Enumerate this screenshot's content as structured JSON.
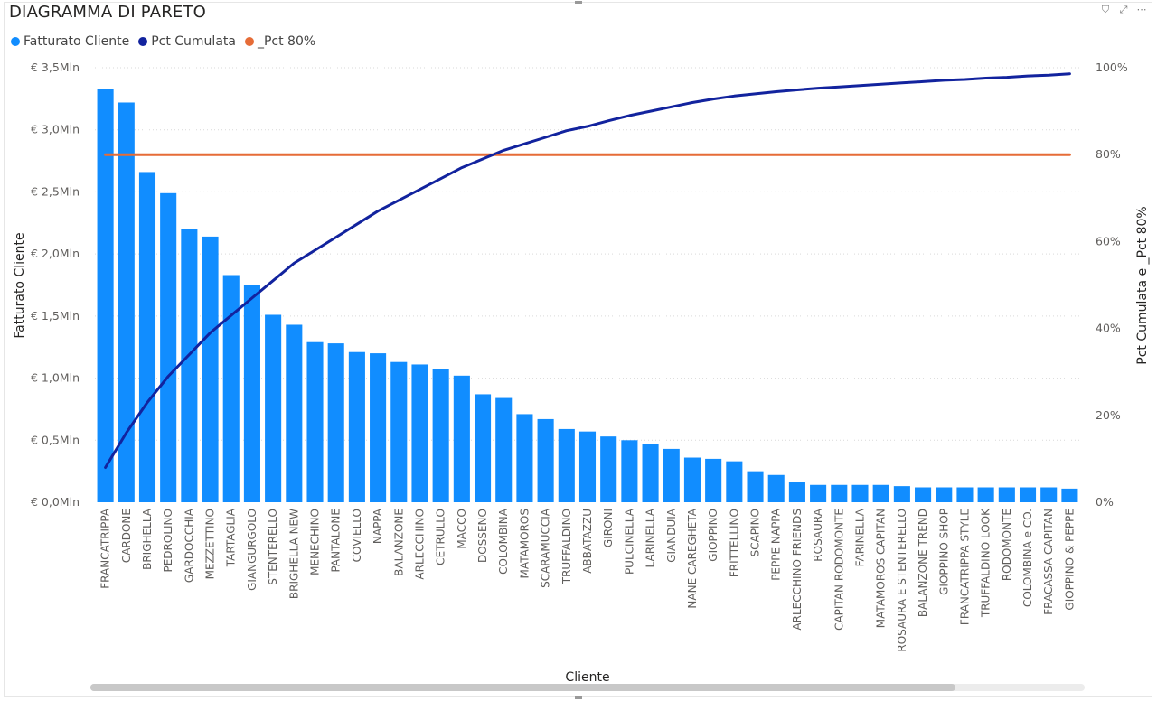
{
  "title": "DIAGRAMMA DI PARETO",
  "header_icons": [
    "filter-icon",
    "focus-mode-icon",
    "more-options-icon"
  ],
  "header_icon_glyphs": [
    "⛉",
    "⤢",
    "⋯"
  ],
  "legend": [
    {
      "label": "Fatturato Cliente",
      "color": "#118dff"
    },
    {
      "label": "Pct Cumulata",
      "color": "#12239e"
    },
    {
      "label": "_Pct 80%",
      "color": "#e66c37"
    }
  ],
  "chart_data": {
    "type": "bar",
    "title": "DIAGRAMMA DI PARETO",
    "xlabel": "Cliente",
    "ylabel": "Fatturato Cliente",
    "y2label": "Pct Cumulata e _Pct 80%",
    "ylim": [
      0,
      3.5
    ],
    "y2lim": [
      0,
      100
    ],
    "y_ticks": [
      "€ 0,0Mln",
      "€ 0,5Mln",
      "€ 1,0Mln",
      "€ 1,5Mln",
      "€ 2,0Mln",
      "€ 2,5Mln",
      "€ 3,0Mln",
      "€ 3,5Mln"
    ],
    "y2_ticks": [
      "0%",
      "20%",
      "40%",
      "60%",
      "80%",
      "100%"
    ],
    "grid": true,
    "legend_position": "top-left",
    "categories": [
      "FRANCATRIPPA",
      "CARDONE",
      "BRIGHELLA",
      "PEDROLINO",
      "GARDOCCHIA",
      "MEZZETTINO",
      "TARTAGLIA",
      "GIANGURGOLO",
      "STENTERELLO",
      "BRIGHELLA NEW",
      "MENECHINO",
      "PANTALONE",
      "COVIELLO",
      "NAPPA",
      "BALANZONE",
      "ARLECCHINO",
      "CETRULLO",
      "MACCO",
      "DOSSENO",
      "COLOMBINA",
      "MATAMOROS",
      "SCARAMUCCIA",
      "TRUFFALDINO",
      "ABBATAZZU",
      "GIRONI",
      "PULCINELLA",
      "LARINELLA",
      "GIANDUIA",
      "NANE CAREGHETA",
      "GIOPPINO",
      "FRITTELLINO",
      "SCAPINO",
      "PEPPE NAPPA",
      "ARLECCHINO FRIENDS",
      "ROSAURA",
      "CAPITAN RODOMONTE",
      "FARINELLA",
      "MATAMOROS CAPITAN",
      "ROSAURA E STENTERELLO",
      "BALANZONE TREND",
      "GIOPPINO SHOP",
      "FRANCATRIPPA STYLE",
      "TRUFFALDINO LOOK",
      "RODOMONTE",
      "COLOMBINA e CO.",
      "FRACASSA CAPITAN",
      "GIOPPINO & PEPPE"
    ],
    "series": [
      {
        "name": "Fatturato Cliente",
        "axis": "left",
        "type": "bar",
        "color": "#118dff",
        "values": [
          3.33,
          3.22,
          2.66,
          2.49,
          2.2,
          2.14,
          1.83,
          1.75,
          1.51,
          1.43,
          1.29,
          1.28,
          1.21,
          1.2,
          1.13,
          1.11,
          1.07,
          1.02,
          0.87,
          0.84,
          0.71,
          0.67,
          0.59,
          0.57,
          0.53,
          0.5,
          0.47,
          0.43,
          0.36,
          0.35,
          0.33,
          0.25,
          0.22,
          0.16,
          0.14,
          0.14,
          0.14,
          0.14,
          0.13,
          0.12,
          0.12,
          0.12,
          0.12,
          0.12,
          0.12,
          0.12,
          0.11
        ]
      },
      {
        "name": "Pct Cumulata",
        "axis": "right",
        "type": "line",
        "color": "#12239e",
        "values": [
          8,
          16,
          23,
          29,
          34,
          39,
          43,
          47,
          51,
          55,
          58,
          61,
          64,
          67,
          69.5,
          72,
          74.5,
          77,
          79,
          81,
          82.5,
          84,
          85.5,
          86.5,
          87.8,
          89,
          90,
          91,
          92,
          92.8,
          93.5,
          94,
          94.5,
          94.9,
          95.3,
          95.6,
          95.9,
          96.2,
          96.5,
          96.8,
          97.1,
          97.3,
          97.6,
          97.8,
          98.1,
          98.3,
          98.6
        ]
      },
      {
        "name": "_Pct 80%",
        "axis": "right",
        "type": "line",
        "color": "#e66c37",
        "values": [
          80,
          80,
          80,
          80,
          80,
          80,
          80,
          80,
          80,
          80,
          80,
          80,
          80,
          80,
          80,
          80,
          80,
          80,
          80,
          80,
          80,
          80,
          80,
          80,
          80,
          80,
          80,
          80,
          80,
          80,
          80,
          80,
          80,
          80,
          80,
          80,
          80,
          80,
          80,
          80,
          80,
          80,
          80,
          80,
          80,
          80,
          80
        ]
      }
    ]
  }
}
